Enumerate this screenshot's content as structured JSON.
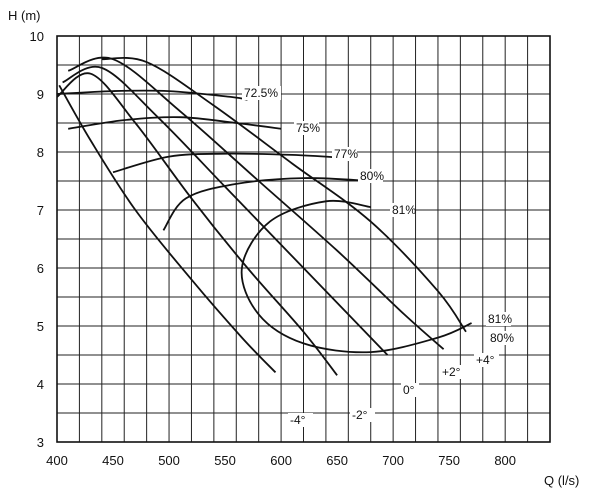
{
  "chart_data": {
    "type": "line",
    "xlabel": "Q (l/s)",
    "ylabel": "H (m)",
    "xlim": [
      400,
      840
    ],
    "ylim": [
      3,
      10
    ],
    "x_ticks": [
      "400",
      "450",
      "500",
      "550",
      "600",
      "650",
      "700",
      "750",
      "800"
    ],
    "y_ticks": [
      "3",
      "4",
      "5",
      "6",
      "7",
      "8",
      "9",
      "10"
    ],
    "grid": true,
    "blade_angle_curves": [
      {
        "label": "-4°",
        "points": [
          [
            402,
            9.15
          ],
          [
            430,
            8.2
          ],
          [
            470,
            7.0
          ],
          [
            520,
            5.8
          ],
          [
            565,
            4.8
          ],
          [
            595,
            4.2
          ]
        ]
      },
      {
        "label": "-2°",
        "points": [
          [
            400,
            8.95
          ],
          [
            430,
            9.35
          ],
          [
            470,
            8.5
          ],
          [
            520,
            7.2
          ],
          [
            570,
            6.0
          ],
          [
            620,
            4.9
          ],
          [
            650,
            4.15
          ]
        ]
      },
      {
        "label": "0°",
        "points": [
          [
            405,
            9.2
          ],
          [
            440,
            9.45
          ],
          [
            490,
            8.6
          ],
          [
            550,
            7.4
          ],
          [
            610,
            6.2
          ],
          [
            660,
            5.2
          ],
          [
            695,
            4.5
          ]
        ]
      },
      {
        "label": "+2°",
        "points": [
          [
            410,
            9.4
          ],
          [
            450,
            9.6
          ],
          [
            510,
            8.7
          ],
          [
            580,
            7.5
          ],
          [
            650,
            6.3
          ],
          [
            710,
            5.2
          ],
          [
            745,
            4.6
          ]
        ]
      },
      {
        "label": "+4°",
        "points": [
          [
            440,
            9.6
          ],
          [
            480,
            9.55
          ],
          [
            540,
            8.8
          ],
          [
            610,
            7.8
          ],
          [
            680,
            6.8
          ],
          [
            740,
            5.6
          ],
          [
            765,
            4.9
          ]
        ]
      }
    ],
    "efficiency_contours": [
      {
        "label": "72.5%",
        "points": [
          [
            400,
            9.0
          ],
          [
            450,
            9.05
          ],
          [
            500,
            9.05
          ],
          [
            555,
            8.95
          ],
          [
            570,
            8.9
          ]
        ]
      },
      {
        "label": "75%",
        "points": [
          [
            410,
            8.4
          ],
          [
            460,
            8.55
          ],
          [
            510,
            8.6
          ],
          [
            560,
            8.5
          ],
          [
            600,
            8.4
          ]
        ]
      },
      {
        "label": "77%",
        "points": [
          [
            450,
            7.65
          ],
          [
            500,
            7.92
          ],
          [
            550,
            7.97
          ],
          [
            610,
            7.95
          ],
          [
            655,
            7.9
          ]
        ]
      },
      {
        "label": "80%",
        "points": [
          [
            495,
            6.65
          ],
          [
            515,
            7.2
          ],
          [
            560,
            7.45
          ],
          [
            620,
            7.55
          ],
          [
            680,
            7.5
          ]
        ]
      },
      {
        "label": "81%",
        "points": [
          [
            680,
            7.05
          ],
          [
            640,
            7.15
          ],
          [
            590,
            6.8
          ],
          [
            565,
            6.0
          ],
          [
            580,
            5.2
          ],
          [
            620,
            4.7
          ],
          [
            680,
            4.55
          ],
          [
            740,
            4.8
          ],
          [
            770,
            5.05
          ]
        ]
      }
    ],
    "annotations": [
      "72.5%",
      "75%",
      "77%",
      "80%",
      "81%",
      "81%",
      "80%",
      "-4°",
      "-2°",
      "0°",
      "+2°",
      "+4°"
    ]
  }
}
